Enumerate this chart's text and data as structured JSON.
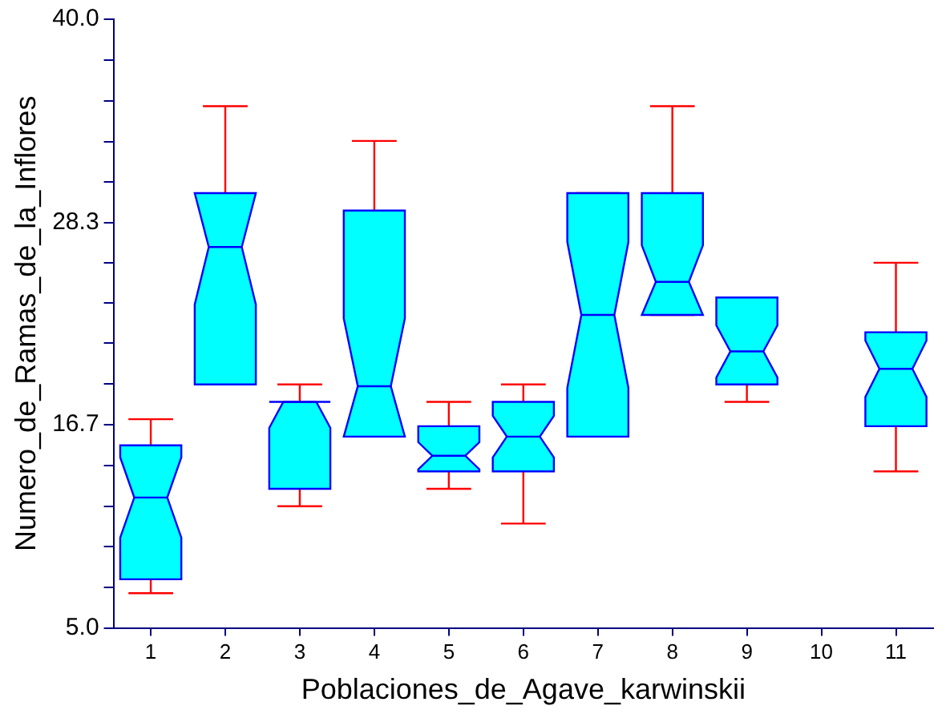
{
  "chart_data": {
    "type": "box",
    "xlabel": "Poblaciones_de_Agave_karwinskii",
    "ylabel": "Numero_de_Ramas_de_la_Inflores",
    "categories": [
      "1",
      "2",
      "3",
      "4",
      "5",
      "6",
      "7",
      "8",
      "9",
      "10",
      "11"
    ],
    "color": "#00ffff",
    "boxes": [
      {
        "low": 7.0,
        "q1": 7.8,
        "median": 12.5,
        "q3": 15.5,
        "high": 17.0
      },
      {
        "low": 19.0,
        "q1": 19.0,
        "median": 26.9,
        "q3": 30.0,
        "high": 35.0
      },
      {
        "low": 12.0,
        "q1": 13.0,
        "median": 18.0,
        "q3": 18.0,
        "high": 19.0
      },
      {
        "low": 16.0,
        "q1": 16.0,
        "median": 18.9,
        "q3": 29.0,
        "high": 33.0
      },
      {
        "low": 13.0,
        "q1": 14.0,
        "median": 14.9,
        "q3": 16.6,
        "high": 18.0
      },
      {
        "low": 11.0,
        "q1": 14.0,
        "median": 16.0,
        "q3": 18.0,
        "high": 19.0
      },
      {
        "low": 16.0,
        "q1": 16.0,
        "median": 23.0,
        "q3": 30.0,
        "high": 30.0
      },
      {
        "low": 23.0,
        "q1": 23.0,
        "median": 24.9,
        "q3": 30.0,
        "high": 35.0
      },
      {
        "low": 18.0,
        "q1": 19.0,
        "median": 20.9,
        "q3": 24.0,
        "high": 24.0
      },
      null,
      {
        "low": 14.0,
        "q1": 16.6,
        "median": 19.9,
        "q3": 22.0,
        "high": 26.0
      }
    ],
    "ylim": [
      5.0,
      40.0
    ],
    "yticks": [
      {
        "value": 5.0,
        "label": "5.0"
      },
      {
        "value": 7.33,
        "label": null
      },
      {
        "value": 9.67,
        "label": null
      },
      {
        "value": 12.0,
        "label": null
      },
      {
        "value": 14.33,
        "label": null
      },
      {
        "value": 16.7,
        "label": "16.7"
      },
      {
        "value": 19.03,
        "label": null
      },
      {
        "value": 21.37,
        "label": null
      },
      {
        "value": 23.7,
        "label": null
      },
      {
        "value": 26.0,
        "label": null
      },
      {
        "value": 28.3,
        "label": "28.3"
      },
      {
        "value": 30.63,
        "label": null
      },
      {
        "value": 32.97,
        "label": null
      },
      {
        "value": 35.3,
        "label": null
      },
      {
        "value": 37.67,
        "label": null
      },
      {
        "value": 40.0,
        "label": "40.0"
      }
    ]
  }
}
